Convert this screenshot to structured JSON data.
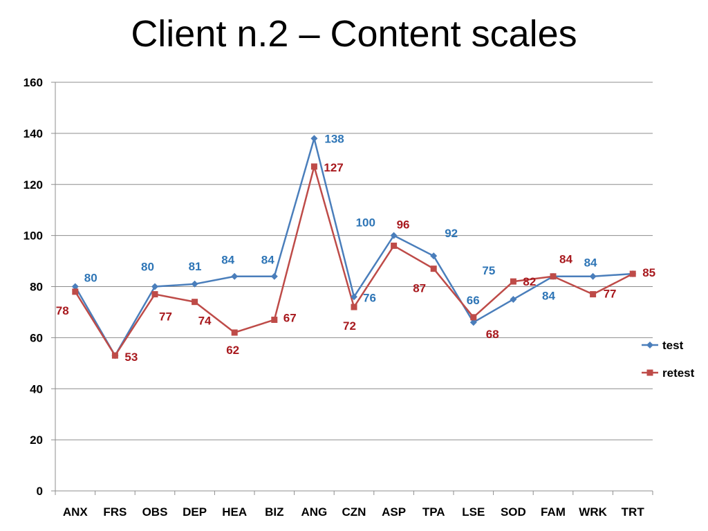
{
  "title": "Client n.2 – Content scales",
  "colors": {
    "test": "#4a7ebb",
    "retest": "#be4b48",
    "test_label": "#2e75b6",
    "retest_label": "#a8191e"
  },
  "chart_data": {
    "type": "line",
    "title": "Client n.2 – Content scales",
    "xlabel": "",
    "ylabel": "",
    "categories": [
      "ANX",
      "FRS",
      "OBS",
      "DEP",
      "HEA",
      "BIZ",
      "ANG",
      "CZN",
      "ASP",
      "TPA",
      "LSE",
      "SOD",
      "FAM",
      "WRK",
      "TRT"
    ],
    "ylim": [
      0,
      160
    ],
    "yticks": [
      0,
      20,
      40,
      60,
      80,
      100,
      120,
      140,
      160
    ],
    "grid": true,
    "legend_position": "right",
    "series": [
      {
        "name": "test",
        "marker": "diamond",
        "values": [
          80,
          53,
          80,
          81,
          84,
          84,
          138,
          76,
          100,
          92,
          66,
          75,
          84,
          84,
          85
        ],
        "data_labels": [
          "80",
          "",
          "80",
          "81",
          "84",
          "84",
          "138",
          "76",
          "100",
          "92",
          "66",
          "75",
          "84",
          "84",
          ""
        ]
      },
      {
        "name": "retest",
        "marker": "square",
        "values": [
          78,
          53,
          77,
          74,
          62,
          67,
          127,
          72,
          96,
          87,
          68,
          82,
          84,
          77,
          85
        ],
        "data_labels": [
          "78",
          "53",
          "77",
          "74",
          "62",
          "67",
          "127",
          "72",
          "96",
          "87",
          "68",
          "82",
          "84",
          "77",
          "85"
        ]
      }
    ]
  }
}
